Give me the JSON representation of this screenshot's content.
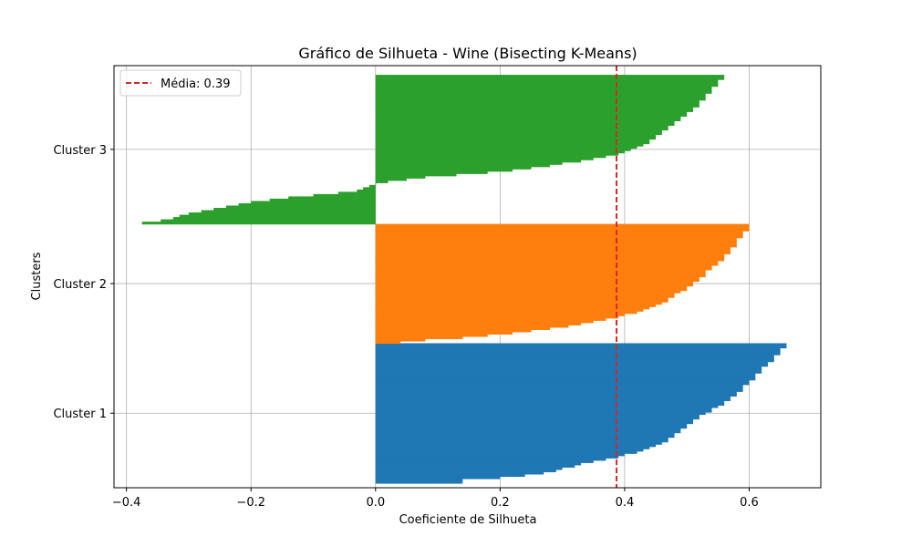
{
  "chart_data": {
    "type": "bar",
    "orientation": "horizontal",
    "title": "Gráfico de Silhueta - Wine (Bisecting K-Means)",
    "xlabel": "Coeficiente de Silhueta",
    "ylabel": "Clusters",
    "xlim": [
      -0.42,
      0.715
    ],
    "xticks": [
      -0.4,
      -0.2,
      0.0,
      0.2,
      0.4,
      0.6
    ],
    "xtick_labels": [
      "−0.4",
      "−0.2",
      "0.0",
      "0.2",
      "0.4",
      "0.6"
    ],
    "ylim": [
      -2,
      182
    ],
    "grid": true,
    "legend_position": "top-left",
    "mean": {
      "value": 0.387,
      "label": "Média: 0.39",
      "color": "#d62728"
    },
    "clusters": [
      {
        "name": "Cluster 1",
        "color": "#1f77b4",
        "size": 61,
        "values": [
          0.14,
          0.14,
          0.2,
          0.24,
          0.27,
          0.29,
          0.3,
          0.32,
          0.33,
          0.35,
          0.37,
          0.39,
          0.4,
          0.42,
          0.43,
          0.44,
          0.45,
          0.46,
          0.47,
          0.47,
          0.48,
          0.48,
          0.49,
          0.49,
          0.5,
          0.5,
          0.51,
          0.51,
          0.52,
          0.52,
          0.53,
          0.54,
          0.54,
          0.55,
          0.56,
          0.56,
          0.57,
          0.57,
          0.58,
          0.58,
          0.59,
          0.59,
          0.59,
          0.6,
          0.6,
          0.61,
          0.61,
          0.61,
          0.62,
          0.62,
          0.62,
          0.63,
          0.63,
          0.64,
          0.64,
          0.64,
          0.65,
          0.65,
          0.65,
          0.66,
          0.66
        ]
      },
      {
        "name": "Cluster 2",
        "color": "#ff7f0e",
        "size": 52,
        "values": [
          0.04,
          0.08,
          0.14,
          0.18,
          0.22,
          0.25,
          0.28,
          0.31,
          0.33,
          0.35,
          0.37,
          0.39,
          0.4,
          0.42,
          0.43,
          0.44,
          0.45,
          0.46,
          0.47,
          0.47,
          0.48,
          0.48,
          0.49,
          0.5,
          0.5,
          0.51,
          0.51,
          0.52,
          0.52,
          0.53,
          0.53,
          0.53,
          0.54,
          0.54,
          0.55,
          0.55,
          0.56,
          0.56,
          0.56,
          0.57,
          0.57,
          0.57,
          0.58,
          0.58,
          0.58,
          0.58,
          0.59,
          0.59,
          0.59,
          0.6,
          0.6,
          0.6
        ]
      },
      {
        "name": "Cluster 3",
        "color": "#2ca02c",
        "size": 65,
        "values": [
          -0.375,
          -0.345,
          -0.325,
          -0.315,
          -0.3,
          -0.28,
          -0.26,
          -0.24,
          -0.22,
          -0.2,
          -0.17,
          -0.14,
          -0.1,
          -0.06,
          -0.03,
          -0.02,
          -0.01,
          0.0,
          0.02,
          0.05,
          0.08,
          0.13,
          0.18,
          0.22,
          0.25,
          0.28,
          0.3,
          0.33,
          0.35,
          0.37,
          0.39,
          0.4,
          0.41,
          0.42,
          0.43,
          0.44,
          0.44,
          0.45,
          0.45,
          0.46,
          0.46,
          0.47,
          0.47,
          0.48,
          0.48,
          0.49,
          0.49,
          0.5,
          0.5,
          0.51,
          0.51,
          0.52,
          0.52,
          0.52,
          0.53,
          0.53,
          0.53,
          0.54,
          0.54,
          0.54,
          0.55,
          0.55,
          0.55,
          0.56,
          0.56
        ]
      }
    ]
  }
}
